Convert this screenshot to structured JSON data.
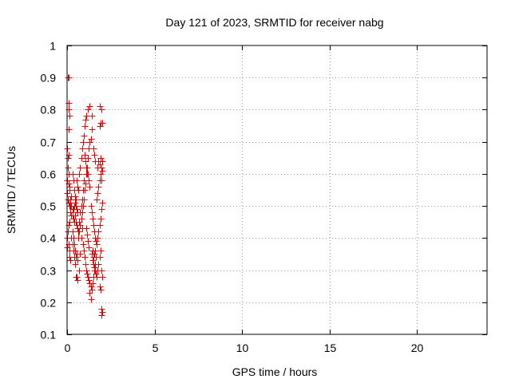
{
  "chart_data": {
    "type": "scatter",
    "title": "Day 121 of 2023, SRMTID for receiver nabg",
    "xlabel": "GPS time / hours",
    "ylabel": "SRMTID / TECUs",
    "xlim": [
      0,
      24
    ],
    "ylim": [
      0.1,
      1.0
    ],
    "x_ticks": [
      0,
      5,
      10,
      15,
      20
    ],
    "x_tick_labels": [
      "0",
      "5",
      "10",
      "15",
      "20"
    ],
    "y_ticks": [
      0.1,
      0.2,
      0.3,
      0.4,
      0.5,
      0.6,
      0.7,
      0.8,
      0.9,
      1.0
    ],
    "y_tick_labels": [
      "0.1",
      "0.2",
      "0.3",
      "0.4",
      "0.5",
      "0.6",
      "0.7",
      "0.8",
      "0.9",
      "1"
    ],
    "grid": true,
    "marker": "+",
    "color": "#e00000",
    "series": [
      {
        "points": [
          [
            0.05,
            0.9
          ],
          [
            0.1,
            0.9
          ],
          [
            0.08,
            0.82
          ],
          [
            0.1,
            0.8
          ],
          [
            0.12,
            0.78
          ],
          [
            0.08,
            0.74
          ],
          [
            0.02,
            0.68
          ],
          [
            0.1,
            0.66
          ],
          [
            0.06,
            0.65
          ],
          [
            0.04,
            0.62
          ],
          [
            0.1,
            0.6
          ],
          [
            0.02,
            0.58
          ],
          [
            0.08,
            0.57
          ],
          [
            0.12,
            0.56
          ],
          [
            0.15,
            0.55
          ],
          [
            0.0,
            0.54
          ],
          [
            0.05,
            0.52
          ],
          [
            0.1,
            0.51
          ],
          [
            0.15,
            0.5
          ],
          [
            0.2,
            0.5
          ],
          [
            0.25,
            0.5
          ],
          [
            0.3,
            0.49
          ],
          [
            0.35,
            0.49
          ],
          [
            0.4,
            0.5
          ],
          [
            0.45,
            0.51
          ],
          [
            0.5,
            0.5
          ],
          [
            0.55,
            0.49
          ],
          [
            0.6,
            0.48
          ],
          [
            0.3,
            0.47
          ],
          [
            0.35,
            0.46
          ],
          [
            0.4,
            0.45
          ],
          [
            0.45,
            0.47
          ],
          [
            0.2,
            0.48
          ],
          [
            0.25,
            0.47
          ],
          [
            0.15,
            0.45
          ],
          [
            0.1,
            0.44
          ],
          [
            0.05,
            0.42
          ],
          [
            0.0,
            0.4
          ],
          [
            0.08,
            0.38
          ],
          [
            0.12,
            0.36
          ],
          [
            0.02,
            0.37
          ],
          [
            0.3,
            0.6
          ],
          [
            0.35,
            0.58
          ],
          [
            0.4,
            0.55
          ],
          [
            0.45,
            0.53
          ],
          [
            0.5,
            0.52
          ],
          [
            0.2,
            0.52
          ],
          [
            0.25,
            0.53
          ],
          [
            0.3,
            0.42
          ],
          [
            0.35,
            0.4
          ],
          [
            0.4,
            0.38
          ],
          [
            0.45,
            0.36
          ],
          [
            0.5,
            0.34
          ],
          [
            0.55,
            0.35
          ],
          [
            0.6,
            0.33
          ],
          [
            0.5,
            0.28
          ],
          [
            0.55,
            0.28
          ],
          [
            0.6,
            0.27
          ],
          [
            0.7,
            0.3
          ],
          [
            0.75,
            0.35
          ],
          [
            0.8,
            0.4
          ],
          [
            0.85,
            0.43
          ],
          [
            0.65,
            0.42
          ],
          [
            0.7,
            0.45
          ],
          [
            0.75,
            0.48
          ],
          [
            0.8,
            0.5
          ],
          [
            0.85,
            0.52
          ],
          [
            0.9,
            0.55
          ],
          [
            0.95,
            0.58
          ],
          [
            0.7,
            0.6
          ],
          [
            0.75,
            0.62
          ],
          [
            0.8,
            0.65
          ],
          [
            0.85,
            0.68
          ],
          [
            0.9,
            0.7
          ],
          [
            0.95,
            0.72
          ],
          [
            1.0,
            0.75
          ],
          [
            1.05,
            0.77
          ],
          [
            1.1,
            0.78
          ],
          [
            1.2,
            0.8
          ],
          [
            1.3,
            0.81
          ],
          [
            1.4,
            0.74
          ],
          [
            1.35,
            0.71
          ],
          [
            1.3,
            0.7
          ],
          [
            1.25,
            0.68
          ],
          [
            1.2,
            0.65
          ],
          [
            1.15,
            0.62
          ],
          [
            1.1,
            0.6
          ],
          [
            1.05,
            0.57
          ],
          [
            1.0,
            0.55
          ],
          [
            0.95,
            0.52
          ],
          [
            0.9,
            0.5
          ],
          [
            0.85,
            0.48
          ],
          [
            0.8,
            0.46
          ],
          [
            0.75,
            0.44
          ],
          [
            0.7,
            0.42
          ],
          [
            0.65,
            0.4
          ],
          [
            0.9,
            0.38
          ],
          [
            0.95,
            0.36
          ],
          [
            1.0,
            0.34
          ],
          [
            1.05,
            0.32
          ],
          [
            1.1,
            0.3
          ],
          [
            1.15,
            0.29
          ],
          [
            1.2,
            0.28
          ],
          [
            1.25,
            0.27
          ],
          [
            1.3,
            0.26
          ],
          [
            1.35,
            0.25
          ],
          [
            1.3,
            0.23
          ],
          [
            1.35,
            0.21
          ],
          [
            1.4,
            0.24
          ],
          [
            1.45,
            0.26
          ],
          [
            1.5,
            0.28
          ],
          [
            1.55,
            0.3
          ],
          [
            1.6,
            0.32
          ],
          [
            1.45,
            0.33
          ],
          [
            1.5,
            0.34
          ],
          [
            1.55,
            0.35
          ],
          [
            1.6,
            0.36
          ],
          [
            1.65,
            0.34
          ],
          [
            1.4,
            0.35
          ],
          [
            1.45,
            0.36
          ],
          [
            1.5,
            0.32
          ],
          [
            1.55,
            0.31
          ],
          [
            1.6,
            0.3
          ],
          [
            1.65,
            0.29
          ],
          [
            1.7,
            0.28
          ],
          [
            1.75,
            0.3
          ],
          [
            1.8,
            0.32
          ],
          [
            1.85,
            0.34
          ],
          [
            1.9,
            0.36
          ],
          [
            1.95,
            0.3
          ],
          [
            2.0,
            0.28
          ],
          [
            1.85,
            0.25
          ],
          [
            1.9,
            0.24
          ],
          [
            1.95,
            0.18
          ],
          [
            2.0,
            0.17
          ],
          [
            1.98,
            0.16
          ],
          [
            1.7,
            0.38
          ],
          [
            1.75,
            0.4
          ],
          [
            1.8,
            0.42
          ],
          [
            1.85,
            0.44
          ],
          [
            1.9,
            0.46
          ],
          [
            1.95,
            0.49
          ],
          [
            2.0,
            0.51
          ],
          [
            1.7,
            0.52
          ],
          [
            1.75,
            0.54
          ],
          [
            1.8,
            0.56
          ],
          [
            1.85,
            0.58
          ],
          [
            1.9,
            0.6
          ],
          [
            1.95,
            0.62
          ],
          [
            2.0,
            0.64
          ],
          [
            1.75,
            0.62
          ],
          [
            1.8,
            0.64
          ],
          [
            1.85,
            0.63
          ],
          [
            1.9,
            0.65
          ],
          [
            2.0,
            0.61
          ],
          [
            1.95,
            0.58
          ],
          [
            1.85,
            0.75
          ],
          [
            1.9,
            0.76
          ],
          [
            2.0,
            0.76
          ],
          [
            1.85,
            0.81
          ],
          [
            1.95,
            0.8
          ],
          [
            1.2,
            0.6
          ],
          [
            1.25,
            0.58
          ],
          [
            1.3,
            0.56
          ],
          [
            1.35,
            0.5
          ],
          [
            1.4,
            0.48
          ],
          [
            1.45,
            0.46
          ],
          [
            1.5,
            0.44
          ],
          [
            1.55,
            0.42
          ],
          [
            1.6,
            0.4
          ],
          [
            1.65,
            0.39
          ],
          [
            1.1,
            0.43
          ],
          [
            1.15,
            0.41
          ],
          [
            1.2,
            0.39
          ],
          [
            1.25,
            0.37
          ],
          [
            0.55,
            0.58
          ],
          [
            0.6,
            0.56
          ],
          [
            0.65,
            0.55
          ],
          [
            0.5,
            0.45
          ],
          [
            0.55,
            0.44
          ],
          [
            0.6,
            0.43
          ],
          [
            0.25,
            0.4
          ],
          [
            0.3,
            0.38
          ],
          [
            0.35,
            0.36
          ],
          [
            0.4,
            0.34
          ],
          [
            0.45,
            0.32
          ],
          [
            0.15,
            0.34
          ],
          [
            0.2,
            0.33
          ],
          [
            1.0,
            0.66
          ],
          [
            1.05,
            0.64
          ],
          [
            1.1,
            0.62
          ],
          [
            1.15,
            0.6
          ],
          [
            1.4,
            0.78
          ],
          [
            1.5,
            0.68
          ],
          [
            1.55,
            0.66
          ],
          [
            1.6,
            0.64
          ]
        ]
      }
    ]
  }
}
